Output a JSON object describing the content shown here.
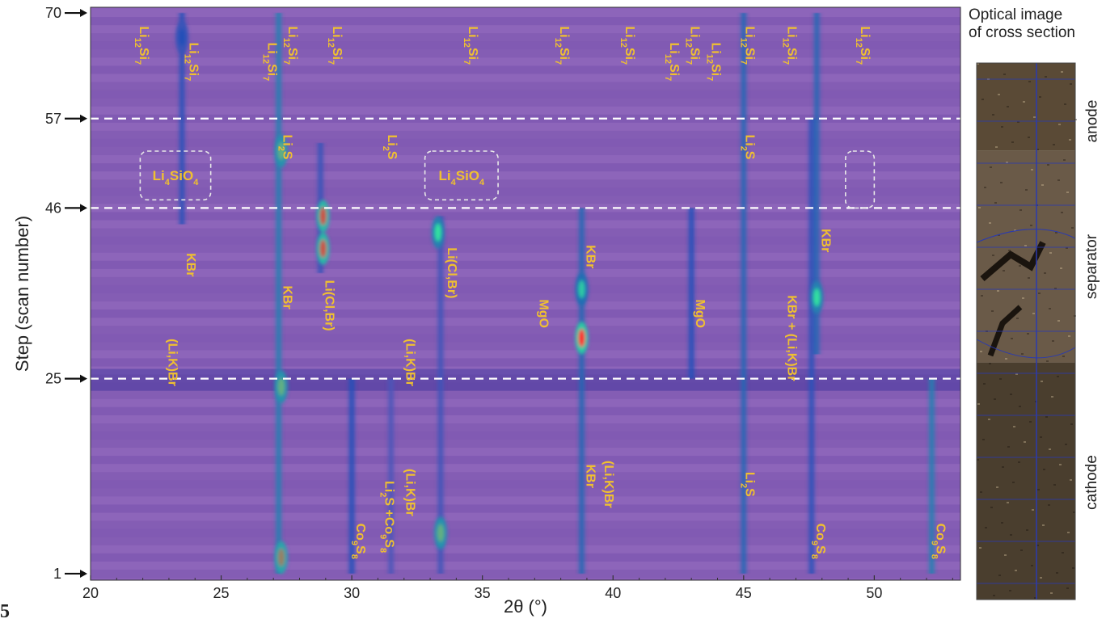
{
  "figure_number": "5",
  "colors": {
    "background": "#8a60b8",
    "peak": "#2050b8",
    "hot": "#30e0a0",
    "hottest": "#ff2020",
    "label": "#f0c030"
  },
  "chart_data": {
    "type": "heatmap",
    "xlabel": "2θ (°)",
    "ylabel": "Step (scan number)",
    "xlim": [
      20,
      53.3
    ],
    "ylim": [
      0.2,
      70.7
    ],
    "xticks": [
      20,
      25,
      30,
      35,
      40,
      45,
      50
    ],
    "yticks": [
      1,
      25,
      46,
      57,
      70
    ],
    "step_markers": [
      57,
      46,
      25
    ],
    "colormap": [
      "#8a60b8",
      "#2050b8",
      "#30e0a0",
      "#ff2020"
    ],
    "peak_lines": [
      {
        "x": 23.5,
        "y0": 44,
        "y1": 70,
        "i": 0.45
      },
      {
        "x": 27.2,
        "y0": 1,
        "y1": 70,
        "i": 0.6
      },
      {
        "x": 28.8,
        "y0": 38,
        "y1": 54,
        "i": 0.4
      },
      {
        "x": 30.0,
        "y0": 1,
        "y1": 25,
        "i": 0.5
      },
      {
        "x": 31.5,
        "y0": 1,
        "y1": 25,
        "i": 0.3
      },
      {
        "x": 33.4,
        "y0": 1,
        "y1": 45,
        "i": 0.35
      },
      {
        "x": 38.8,
        "y0": 1,
        "y1": 46,
        "i": 0.55
      },
      {
        "x": 43.0,
        "y0": 25,
        "y1": 46,
        "i": 0.5
      },
      {
        "x": 45.0,
        "y0": 1,
        "y1": 70,
        "i": 0.55
      },
      {
        "x": 47.6,
        "y0": 1,
        "y1": 57,
        "i": 0.45
      },
      {
        "x": 47.8,
        "y0": 28,
        "y1": 70,
        "i": 0.55
      },
      {
        "x": 52.2,
        "y0": 1,
        "y1": 25,
        "i": 0.6
      }
    ],
    "hot_spots": [
      {
        "x": 28.9,
        "y": 41,
        "i": 0.95
      },
      {
        "x": 28.9,
        "y": 45,
        "i": 0.95
      },
      {
        "x": 27.3,
        "y": 3,
        "i": 0.9
      },
      {
        "x": 27.3,
        "y": 24,
        "i": 0.85
      },
      {
        "x": 27.3,
        "y": 53,
        "i": 0.85
      },
      {
        "x": 33.4,
        "y": 6,
        "i": 0.85
      },
      {
        "x": 33.3,
        "y": 43,
        "i": 0.8
      },
      {
        "x": 38.8,
        "y": 30,
        "i": 1.0
      },
      {
        "x": 38.8,
        "y": 36,
        "i": 0.75
      },
      {
        "x": 47.8,
        "y": 35,
        "i": 0.8
      },
      {
        "x": 23.5,
        "y": 67,
        "i": 0.5
      }
    ],
    "annotations": [
      {
        "x": 21.7,
        "y": 66,
        "html": "Li<tspan baseline-shift=\"sub\" font-size=\"11\">12</tspan>Si<tspan baseline-shift=\"sub\" font-size=\"11\">7</tspan>",
        "text": "Li12Si7"
      },
      {
        "x": 23.6,
        "y": 64,
        "html": "Li<tspan baseline-shift=\"sub\" font-size=\"11\">12</tspan>Si<tspan baseline-shift=\"sub\" font-size=\"11\">7</tspan>",
        "text": "Li12Si7"
      },
      {
        "x": 26.6,
        "y": 64,
        "html": "Li<tspan baseline-shift=\"sub\" font-size=\"11\">12</tspan>Si<tspan baseline-shift=\"sub\" font-size=\"11\">7</tspan>",
        "text": "Li12Si7"
      },
      {
        "x": 27.4,
        "y": 66,
        "html": "Li<tspan baseline-shift=\"sub\" font-size=\"11\">12</tspan>Si<tspan baseline-shift=\"sub\" font-size=\"11\">7</tspan>",
        "text": "Li12Si7"
      },
      {
        "x": 29.1,
        "y": 66,
        "html": "Li<tspan baseline-shift=\"sub\" font-size=\"11\">12</tspan>Si<tspan baseline-shift=\"sub\" font-size=\"11\">7</tspan>",
        "text": "Li12Si7"
      },
      {
        "x": 34.3,
        "y": 66,
        "html": "Li<tspan baseline-shift=\"sub\" font-size=\"11\">12</tspan>Si<tspan baseline-shift=\"sub\" font-size=\"11\">7</tspan>",
        "text": "Li12Si7"
      },
      {
        "x": 37.8,
        "y": 66,
        "html": "Li<tspan baseline-shift=\"sub\" font-size=\"11\">12</tspan>Si<tspan baseline-shift=\"sub\" font-size=\"11\">7</tspan>",
        "text": "Li12Si7"
      },
      {
        "x": 40.3,
        "y": 66,
        "html": "Li<tspan baseline-shift=\"sub\" font-size=\"11\">12</tspan>Si<tspan baseline-shift=\"sub\" font-size=\"11\">7</tspan>",
        "text": "Li12Si7"
      },
      {
        "x": 42.0,
        "y": 64,
        "html": "Li<tspan baseline-shift=\"sub\" font-size=\"11\">12</tspan>Si<tspan baseline-shift=\"sub\" font-size=\"11\">7</tspan>",
        "text": "Li12Si7"
      },
      {
        "x": 42.8,
        "y": 66,
        "html": "Li<tspan baseline-shift=\"sub\" font-size=\"11\">12</tspan>Si<tspan baseline-shift=\"sub\" font-size=\"11\">7</tspan>",
        "text": "Li12Si7"
      },
      {
        "x": 43.6,
        "y": 64,
        "html": "Li<tspan baseline-shift=\"sub\" font-size=\"11\">12</tspan>Si<tspan baseline-shift=\"sub\" font-size=\"11\">7</tspan>",
        "text": "Li12Si7"
      },
      {
        "x": 44.9,
        "y": 66,
        "html": "Li<tspan baseline-shift=\"sub\" font-size=\"11\">12</tspan>Si<tspan baseline-shift=\"sub\" font-size=\"11\">7</tspan>",
        "text": "Li12Si7"
      },
      {
        "x": 46.5,
        "y": 66,
        "html": "Li<tspan baseline-shift=\"sub\" font-size=\"11\">12</tspan>Si<tspan baseline-shift=\"sub\" font-size=\"11\">7</tspan>",
        "text": "Li12Si7"
      },
      {
        "x": 49.3,
        "y": 66,
        "html": "Li<tspan baseline-shift=\"sub\" font-size=\"11\">12</tspan>Si<tspan baseline-shift=\"sub\" font-size=\"11\">7</tspan>",
        "text": "Li12Si7"
      },
      {
        "x": 27.2,
        "y": 53.5,
        "html": "Li<tspan baseline-shift=\"sub\" font-size=\"11\">2</tspan>S",
        "text": "Li2S"
      },
      {
        "x": 31.2,
        "y": 53.5,
        "html": "Li<tspan baseline-shift=\"sub\" font-size=\"11\">2</tspan>S",
        "text": "Li2S"
      },
      {
        "x": 44.9,
        "y": 53.5,
        "html": "Li<tspan baseline-shift=\"sub\" font-size=\"11\">2</tspan>S",
        "text": "Li2S"
      },
      {
        "x": 44.9,
        "y": 12,
        "html": "Li<tspan baseline-shift=\"sub\" font-size=\"11\">2</tspan>S",
        "text": "Li2S"
      },
      {
        "x": 23.5,
        "y": 39,
        "html": "KBr",
        "text": "KBr"
      },
      {
        "x": 27.2,
        "y": 35,
        "html": "KBr",
        "text": "KBr"
      },
      {
        "x": 38.8,
        "y": 40,
        "html": "KBr",
        "text": "KBr"
      },
      {
        "x": 47.8,
        "y": 42,
        "html": "KBr",
        "text": "KBr"
      },
      {
        "x": 38.8,
        "y": 13,
        "html": "KBr",
        "text": "KBr"
      },
      {
        "x": 28.8,
        "y": 34,
        "html": "Li(Cl,Br)",
        "text": "Li(Cl,Br)"
      },
      {
        "x": 33.5,
        "y": 38,
        "html": "Li(Cl,Br)",
        "text": "Li(Cl,Br)"
      },
      {
        "x": 22.8,
        "y": 27,
        "html": "(Li,K)Br",
        "text": "(Li,K)Br"
      },
      {
        "x": 31.9,
        "y": 27,
        "html": "(Li,K)Br",
        "text": "(Li,K)Br"
      },
      {
        "x": 31.9,
        "y": 11,
        "html": "(Li,K)Br",
        "text": "(Li,K)Br"
      },
      {
        "x": 39.5,
        "y": 12,
        "html": "(Li,K)Br",
        "text": "(Li,K)Br"
      },
      {
        "x": 37.0,
        "y": 33,
        "html": "MgO",
        "text": "MgO"
      },
      {
        "x": 43.0,
        "y": 33,
        "html": "MgO",
        "text": "MgO"
      },
      {
        "x": 46.5,
        "y": 30,
        "html": "KBr + (Li,K)Br",
        "text": "KBr + (Li,K)Br"
      },
      {
        "x": 30.0,
        "y": 5,
        "html": "Co<tspan baseline-shift=\"sub\" font-size=\"11\">9</tspan>S<tspan baseline-shift=\"sub\" font-size=\"11\">8</tspan>",
        "text": "Co9S8"
      },
      {
        "x": 31.1,
        "y": 8,
        "html": "Li<tspan baseline-shift=\"sub\" font-size=\"11\">2</tspan>S +Co<tspan baseline-shift=\"sub\" font-size=\"11\">9</tspan>S<tspan baseline-shift=\"sub\" font-size=\"11\">8</tspan>",
        "text": "Li2S +Co9S8"
      },
      {
        "x": 47.6,
        "y": 5,
        "html": "Co<tspan baseline-shift=\"sub\" font-size=\"11\">9</tspan>S<tspan baseline-shift=\"sub\" font-size=\"11\">8</tspan>",
        "text": "Co9S8"
      },
      {
        "x": 52.2,
        "y": 5,
        "html": "Co<tspan baseline-shift=\"sub\" font-size=\"11\">9</tspan>S<tspan baseline-shift=\"sub\" font-size=\"11\">8</tspan>",
        "text": "Co9S8"
      }
    ],
    "boxed_labels": [
      {
        "x0": 21.9,
        "x1": 24.6,
        "y0": 47,
        "y1": 53,
        "html": "Li<tspan baseline-shift=\"sub\" font-size=\"11\">4</tspan>SiO<tspan baseline-shift=\"sub\" font-size=\"11\">4</tspan>",
        "text": "Li4SiO4"
      },
      {
        "x0": 32.8,
        "x1": 35.6,
        "y0": 47,
        "y1": 53,
        "html": "Li<tspan baseline-shift=\"sub\" font-size=\"11\">4</tspan>SiO<tspan baseline-shift=\"sub\" font-size=\"11\">4</tspan>",
        "text": "Li4SiO4"
      },
      {
        "x0": 48.9,
        "x1": 50.0,
        "y0": 46,
        "y1": 53,
        "html": "",
        "text": ""
      }
    ]
  },
  "side_panel": {
    "title_line1": "Optical image",
    "title_line2": "of cross section",
    "regions": [
      "anode",
      "separator",
      "cathode"
    ],
    "colors": {
      "anode": "#5a4a36",
      "separator": "#6a5a48",
      "cathode": "#4a3e2e",
      "grid": "#2a3ab0"
    }
  }
}
